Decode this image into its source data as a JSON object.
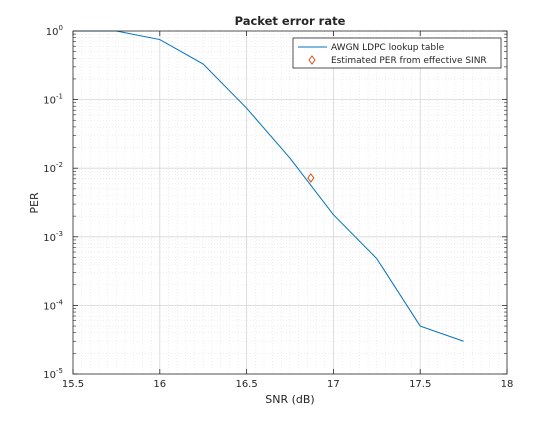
{
  "chart_data": {
    "type": "line",
    "title": "Packet error rate",
    "xlabel": "SNR (dB)",
    "ylabel": "PER",
    "xlim": [
      15.5,
      18
    ],
    "ylim": [
      1e-05,
      1
    ],
    "yscale": "log",
    "grid": true,
    "minor_grid": true,
    "legend_position": "top-right",
    "xticks": [
      15.5,
      16,
      16.5,
      17,
      17.5,
      18
    ],
    "xtick_labels": [
      "15.5",
      "16",
      "16.5",
      "17",
      "17.5",
      "18"
    ],
    "yticks": [
      {
        "value": 1,
        "base": "10",
        "exp": "0"
      },
      {
        "value": 0.1,
        "base": "10",
        "exp": "-1"
      },
      {
        "value": 0.01,
        "base": "10",
        "exp": "-2"
      },
      {
        "value": 0.001,
        "base": "10",
        "exp": "-3"
      },
      {
        "value": 0.0001,
        "base": "10",
        "exp": "-4"
      },
      {
        "value": 1e-05,
        "base": "10",
        "exp": "-5"
      }
    ],
    "series": [
      {
        "name": "AWGN LDPC lookup table",
        "kind": "line",
        "color": "#0072bd",
        "x": [
          15.5,
          15.75,
          16,
          16.25,
          16.5,
          16.75,
          17,
          17.25,
          17.5,
          17.75
        ],
        "y": [
          1,
          1,
          0.75,
          0.33,
          0.075,
          0.014,
          0.0021,
          0.00048,
          5e-05,
          3e-05
        ]
      },
      {
        "name": "Estimated PER from effective SINR",
        "kind": "marker",
        "marker": "diamond",
        "color": "#d95319",
        "x": [
          16.87
        ],
        "y": [
          0.0072
        ]
      }
    ]
  }
}
